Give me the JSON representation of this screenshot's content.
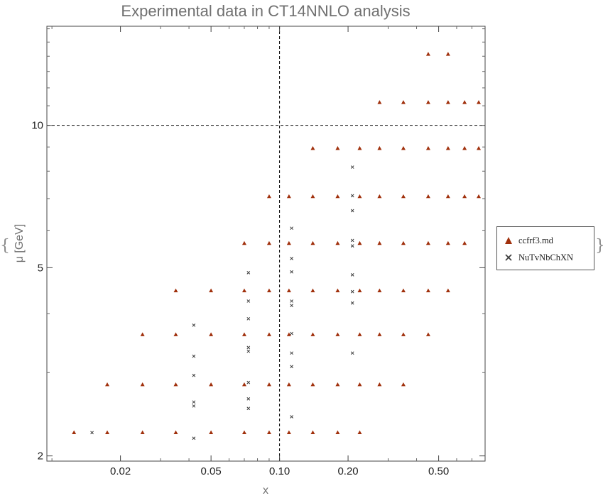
{
  "chart_data": {
    "type": "scatter",
    "title": "Experimental data in CT14NNLO analysis",
    "xlabel": "x",
    "ylabel": "μ [GeV]",
    "x_scale": "log",
    "y_scale": "log",
    "xlim": [
      0.0095,
      0.8
    ],
    "ylim": [
      1.95,
      16.2
    ],
    "x_ticks": [
      0.02,
      0.05,
      0.1,
      0.2,
      0.5
    ],
    "x_tick_labels": [
      "0.02",
      "0.05",
      "0.10",
      "0.20",
      "0.50"
    ],
    "y_ticks": [
      2,
      5,
      10
    ],
    "y_tick_labels": [
      "2",
      "5",
      "10"
    ],
    "reference_lines": {
      "x": 0.1,
      "y": 10
    },
    "grid": false,
    "legend_position": "right",
    "series": [
      {
        "name": "ccfrf3.md",
        "marker": "triangle",
        "color": "#a0300c",
        "points": [
          [
            0.0125,
            2.24
          ],
          [
            0.0175,
            2.24
          ],
          [
            0.025,
            2.24
          ],
          [
            0.035,
            2.24
          ],
          [
            0.05,
            2.24
          ],
          [
            0.07,
            2.24
          ],
          [
            0.09,
            2.24
          ],
          [
            0.11,
            2.24
          ],
          [
            0.14,
            2.24
          ],
          [
            0.18,
            2.24
          ],
          [
            0.225,
            2.24
          ],
          [
            0.0175,
            2.83
          ],
          [
            0.025,
            2.83
          ],
          [
            0.035,
            2.83
          ],
          [
            0.05,
            2.83
          ],
          [
            0.07,
            2.83
          ],
          [
            0.09,
            2.83
          ],
          [
            0.11,
            2.83
          ],
          [
            0.14,
            2.83
          ],
          [
            0.18,
            2.83
          ],
          [
            0.225,
            2.83
          ],
          [
            0.275,
            2.83
          ],
          [
            0.35,
            2.83
          ],
          [
            0.025,
            3.61
          ],
          [
            0.035,
            3.61
          ],
          [
            0.05,
            3.61
          ],
          [
            0.07,
            3.61
          ],
          [
            0.09,
            3.61
          ],
          [
            0.11,
            3.61
          ],
          [
            0.14,
            3.61
          ],
          [
            0.18,
            3.61
          ],
          [
            0.225,
            3.61
          ],
          [
            0.275,
            3.61
          ],
          [
            0.35,
            3.61
          ],
          [
            0.45,
            3.61
          ],
          [
            0.035,
            4.47
          ],
          [
            0.05,
            4.47
          ],
          [
            0.07,
            4.47
          ],
          [
            0.09,
            4.47
          ],
          [
            0.11,
            4.47
          ],
          [
            0.14,
            4.47
          ],
          [
            0.18,
            4.47
          ],
          [
            0.225,
            4.47
          ],
          [
            0.275,
            4.47
          ],
          [
            0.35,
            4.47
          ],
          [
            0.45,
            4.47
          ],
          [
            0.55,
            4.47
          ],
          [
            0.07,
            5.63
          ],
          [
            0.09,
            5.63
          ],
          [
            0.11,
            5.63
          ],
          [
            0.14,
            5.63
          ],
          [
            0.18,
            5.63
          ],
          [
            0.225,
            5.63
          ],
          [
            0.275,
            5.63
          ],
          [
            0.35,
            5.63
          ],
          [
            0.45,
            5.63
          ],
          [
            0.55,
            5.63
          ],
          [
            0.65,
            5.63
          ],
          [
            0.09,
            7.07
          ],
          [
            0.11,
            7.07
          ],
          [
            0.14,
            7.07
          ],
          [
            0.18,
            7.07
          ],
          [
            0.225,
            7.07
          ],
          [
            0.275,
            7.07
          ],
          [
            0.35,
            7.07
          ],
          [
            0.45,
            7.07
          ],
          [
            0.55,
            7.07
          ],
          [
            0.65,
            7.07
          ],
          [
            0.75,
            7.07
          ],
          [
            0.14,
            8.94
          ],
          [
            0.18,
            8.94
          ],
          [
            0.225,
            8.94
          ],
          [
            0.275,
            8.94
          ],
          [
            0.35,
            8.94
          ],
          [
            0.45,
            8.94
          ],
          [
            0.55,
            8.94
          ],
          [
            0.65,
            8.94
          ],
          [
            0.75,
            8.94
          ],
          [
            0.275,
            11.18
          ],
          [
            0.35,
            11.18
          ],
          [
            0.45,
            11.18
          ],
          [
            0.55,
            11.18
          ],
          [
            0.65,
            11.18
          ],
          [
            0.75,
            11.18
          ],
          [
            0.45,
            14.14
          ],
          [
            0.55,
            14.14
          ]
        ]
      },
      {
        "name": "NuTvNbChXN",
        "marker": "x",
        "color": "#3a3a3a",
        "points": [
          [
            0.015,
            2.24
          ],
          [
            0.042,
            2.18
          ],
          [
            0.042,
            2.55
          ],
          [
            0.042,
            2.6
          ],
          [
            0.042,
            2.96
          ],
          [
            0.042,
            3.25
          ],
          [
            0.042,
            3.78
          ],
          [
            0.073,
            2.52
          ],
          [
            0.073,
            2.64
          ],
          [
            0.073,
            2.86
          ],
          [
            0.073,
            3.33
          ],
          [
            0.073,
            3.39
          ],
          [
            0.073,
            3.9
          ],
          [
            0.073,
            4.25
          ],
          [
            0.073,
            4.88
          ],
          [
            0.113,
            2.42
          ],
          [
            0.113,
            3.09
          ],
          [
            0.113,
            3.3
          ],
          [
            0.113,
            3.63
          ],
          [
            0.113,
            4.16
          ],
          [
            0.113,
            4.25
          ],
          [
            0.113,
            4.9
          ],
          [
            0.113,
            5.23
          ],
          [
            0.113,
            6.06
          ],
          [
            0.209,
            3.3
          ],
          [
            0.209,
            4.21
          ],
          [
            0.209,
            4.45
          ],
          [
            0.209,
            4.83
          ],
          [
            0.209,
            5.56
          ],
          [
            0.209,
            5.71
          ],
          [
            0.209,
            6.6
          ],
          [
            0.209,
            7.1
          ],
          [
            0.209,
            8.16
          ]
        ]
      }
    ]
  }
}
